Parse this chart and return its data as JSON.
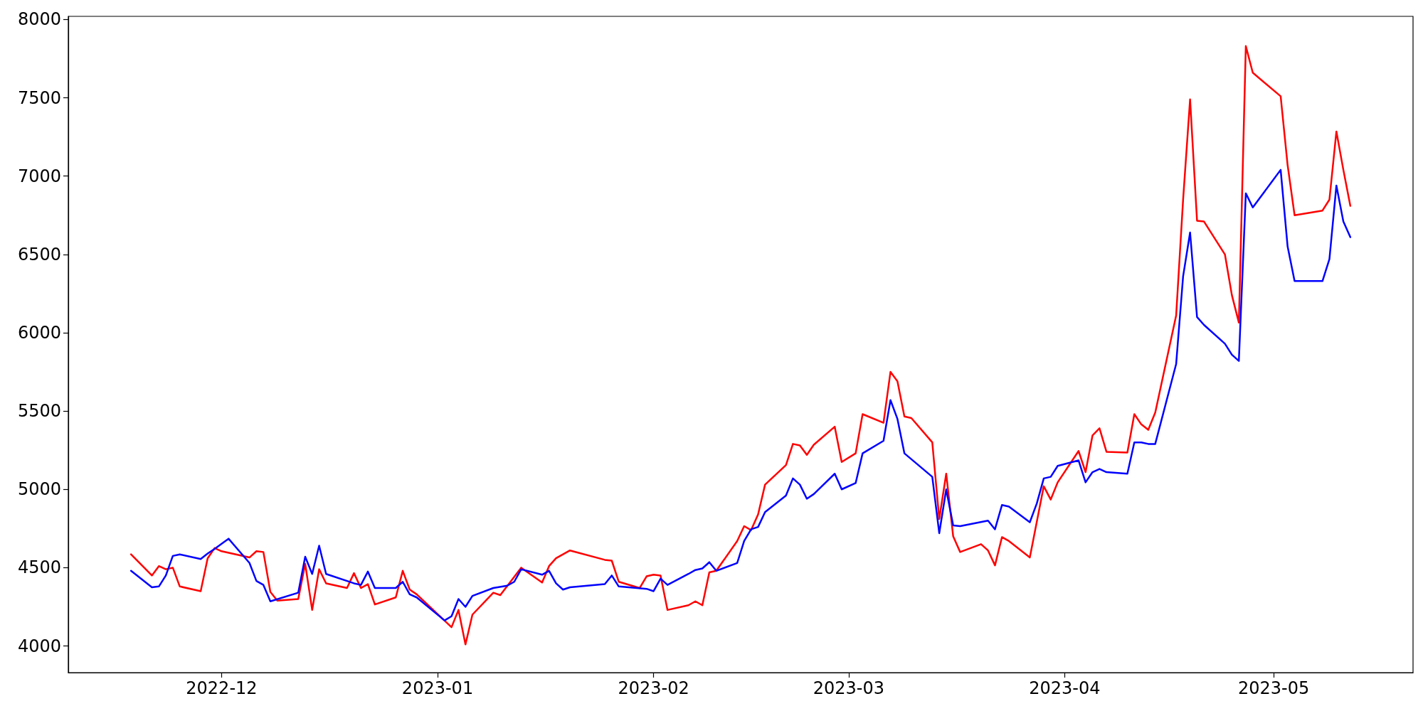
{
  "chart_data": {
    "type": "line",
    "xlim": [
      "2022-11-09",
      "2023-05-21"
    ],
    "xticks": [
      "2022-12",
      "2023-01",
      "2023-02",
      "2023-03",
      "2023-04",
      "2023-05"
    ],
    "ylim": [
      3830,
      8020
    ],
    "yticks": [
      4000,
      4500,
      5000,
      5500,
      6000,
      6500,
      7000,
      7500,
      8000
    ],
    "grid": false,
    "marker": "none",
    "line_style": "solid",
    "series": [
      {
        "color": "#ff0000",
        "x": [
          "2022-11-18",
          "2022-11-21",
          "2022-11-22",
          "2022-11-23",
          "2022-11-24",
          "2022-11-25",
          "2022-11-28",
          "2022-11-29",
          "2022-11-30",
          "2022-12-01",
          "2022-12-05",
          "2022-12-06",
          "2022-12-07",
          "2022-12-08",
          "2022-12-09",
          "2022-12-12",
          "2022-12-13",
          "2022-12-14",
          "2022-12-15",
          "2022-12-16",
          "2022-12-19",
          "2022-12-20",
          "2022-12-21",
          "2022-12-22",
          "2022-12-23",
          "2022-12-26",
          "2022-12-27",
          "2022-12-28",
          "2022-12-29",
          "2023-01-03",
          "2023-01-04",
          "2023-01-05",
          "2023-01-06",
          "2023-01-09",
          "2023-01-10",
          "2023-01-13",
          "2023-01-16",
          "2023-01-17",
          "2023-01-18",
          "2023-01-20",
          "2023-01-25",
          "2023-01-26",
          "2023-01-27",
          "2023-01-30",
          "2023-01-31",
          "2023-02-01",
          "2023-02-02",
          "2023-02-03",
          "2023-02-06",
          "2023-02-07",
          "2023-02-08",
          "2023-02-09",
          "2023-02-10",
          "2023-02-13",
          "2023-02-14",
          "2023-02-15",
          "2023-02-16",
          "2023-02-17",
          "2023-02-20",
          "2023-02-21",
          "2023-02-22",
          "2023-02-23",
          "2023-02-24",
          "2023-02-27",
          "2023-02-28",
          "2023-03-02",
          "2023-03-03",
          "2023-03-06",
          "2023-03-07",
          "2023-03-08",
          "2023-03-09",
          "2023-03-10",
          "2023-03-13",
          "2023-03-14",
          "2023-03-15",
          "2023-03-16",
          "2023-03-17",
          "2023-03-20",
          "2023-03-21",
          "2023-03-22",
          "2023-03-23",
          "2023-03-24",
          "2023-03-27",
          "2023-03-29",
          "2023-03-30",
          "2023-03-31",
          "2023-04-03",
          "2023-04-04",
          "2023-04-05",
          "2023-04-06",
          "2023-04-07",
          "2023-04-10",
          "2023-04-11",
          "2023-04-12",
          "2023-04-13",
          "2023-04-14",
          "2023-04-17",
          "2023-04-18",
          "2023-04-19",
          "2023-04-20",
          "2023-04-21",
          "2023-04-24",
          "2023-04-25",
          "2023-04-26",
          "2023-04-27",
          "2023-04-28",
          "2023-05-02",
          "2023-05-03",
          "2023-05-04",
          "2023-05-08",
          "2023-05-09",
          "2023-05-10",
          "2023-05-11",
          "2023-05-12"
        ],
        "values": [
          4585,
          4450,
          4510,
          4490,
          4500,
          4380,
          4350,
          4560,
          4625,
          4605,
          4565,
          4605,
          4600,
          4345,
          4290,
          4300,
          4525,
          4230,
          4490,
          4400,
          4370,
          4465,
          4370,
          4395,
          4265,
          4310,
          4480,
          4360,
          4330,
          4120,
          4230,
          4010,
          4200,
          4340,
          4325,
          4500,
          4405,
          4510,
          4560,
          4610,
          4550,
          4545,
          4410,
          4370,
          4445,
          4455,
          4450,
          4230,
          4260,
          4285,
          4260,
          4470,
          4480,
          4670,
          4765,
          4740,
          4840,
          5030,
          5155,
          5290,
          5280,
          5220,
          5285,
          5400,
          5175,
          5230,
          5480,
          5425,
          5750,
          5690,
          5465,
          5455,
          5300,
          4810,
          5100,
          4700,
          4600,
          4650,
          4610,
          4515,
          4695,
          4670,
          4565,
          5020,
          4935,
          5045,
          5245,
          5110,
          5345,
          5390,
          5240,
          5235,
          5480,
          5415,
          5380,
          5490,
          6110,
          6850,
          7490,
          6715,
          6710,
          6500,
          6240,
          6065,
          7830,
          7660,
          7510,
          7070,
          6750,
          6780,
          6850,
          7285,
          7040,
          6810
        ]
      },
      {
        "color": "#0000ff",
        "x": [
          "2022-11-18",
          "2022-11-21",
          "2022-11-22",
          "2022-11-23",
          "2022-11-24",
          "2022-11-25",
          "2022-11-28",
          "2022-11-29",
          "2022-11-30",
          "2022-12-02",
          "2022-12-05",
          "2022-12-06",
          "2022-12-07",
          "2022-12-08",
          "2022-12-12",
          "2022-12-13",
          "2022-12-14",
          "2022-12-15",
          "2022-12-16",
          "2022-12-20",
          "2022-12-21",
          "2022-12-22",
          "2022-12-23",
          "2022-12-26",
          "2022-12-27",
          "2022-12-28",
          "2022-12-29",
          "2023-01-02",
          "2023-01-03",
          "2023-01-04",
          "2023-01-05",
          "2023-01-06",
          "2023-01-09",
          "2023-01-11",
          "2023-01-12",
          "2023-01-13",
          "2023-01-16",
          "2023-01-17",
          "2023-01-18",
          "2023-01-19",
          "2023-01-20",
          "2023-01-25",
          "2023-01-26",
          "2023-01-27",
          "2023-01-31",
          "2023-02-01",
          "2023-02-02",
          "2023-02-03",
          "2023-02-06",
          "2023-02-07",
          "2023-02-08",
          "2023-02-09",
          "2023-02-10",
          "2023-02-13",
          "2023-02-14",
          "2023-02-15",
          "2023-02-16",
          "2023-02-17",
          "2023-02-20",
          "2023-02-21",
          "2023-02-22",
          "2023-02-23",
          "2023-02-24",
          "2023-02-27",
          "2023-02-28",
          "2023-03-02",
          "2023-03-03",
          "2023-03-06",
          "2023-03-07",
          "2023-03-08",
          "2023-03-09",
          "2023-03-13",
          "2023-03-14",
          "2023-03-15",
          "2023-03-16",
          "2023-03-17",
          "2023-03-21",
          "2023-03-22",
          "2023-03-23",
          "2023-03-24",
          "2023-03-27",
          "2023-03-28",
          "2023-03-29",
          "2023-03-30",
          "2023-03-31",
          "2023-04-03",
          "2023-04-04",
          "2023-04-05",
          "2023-04-06",
          "2023-04-07",
          "2023-04-10",
          "2023-04-11",
          "2023-04-12",
          "2023-04-13",
          "2023-04-14",
          "2023-04-17",
          "2023-04-18",
          "2023-04-19",
          "2023-04-20",
          "2023-04-21",
          "2023-04-24",
          "2023-04-25",
          "2023-04-26",
          "2023-04-27",
          "2023-04-28",
          "2023-05-02",
          "2023-05-03",
          "2023-05-04",
          "2023-05-08",
          "2023-05-09",
          "2023-05-10",
          "2023-05-11",
          "2023-05-12"
        ],
        "values": [
          4480,
          4375,
          4380,
          4450,
          4575,
          4585,
          4555,
          4590,
          4620,
          4685,
          4530,
          4415,
          4390,
          4285,
          4340,
          4570,
          4460,
          4640,
          4460,
          4400,
          4390,
          4475,
          4370,
          4370,
          4410,
          4330,
          4310,
          4163,
          4190,
          4300,
          4250,
          4320,
          4370,
          4385,
          4410,
          4490,
          4455,
          4480,
          4400,
          4360,
          4375,
          4395,
          4450,
          4380,
          4365,
          4350,
          4430,
          4390,
          4460,
          4485,
          4495,
          4535,
          4480,
          4530,
          4670,
          4745,
          4760,
          4855,
          4960,
          5070,
          5030,
          4940,
          4970,
          5100,
          5000,
          5040,
          5230,
          5310,
          5570,
          5450,
          5230,
          5080,
          4720,
          5000,
          4770,
          4765,
          4800,
          4745,
          4900,
          4890,
          4790,
          4910,
          5070,
          5080,
          5150,
          5185,
          5045,
          5110,
          5130,
          5110,
          5100,
          5300,
          5300,
          5290,
          5290,
          5800,
          6360,
          6640,
          6100,
          6050,
          5930,
          5860,
          5820,
          6890,
          6800,
          7040,
          6550,
          6330,
          6330,
          6470,
          6940,
          6710,
          6610
        ]
      }
    ]
  }
}
